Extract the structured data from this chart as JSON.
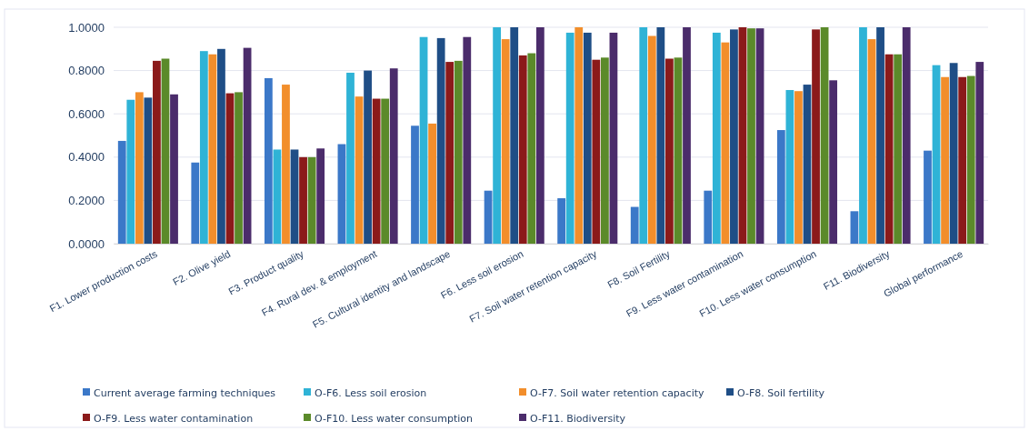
{
  "chart_data": {
    "type": "bar",
    "categories": [
      "F1. Lower production costs",
      "F2. Olive yield",
      "F3. Product quality",
      "F4. Rural dev. & employment",
      "F5. Cultural identity and landscape",
      "F6. Less soil erosion",
      "F7. Soil water retention capacity",
      "F8. Soil Fertility",
      "F9. Less water contamination",
      "F10. Less water consumption",
      "F11. Biodiversity",
      "Global performance"
    ],
    "series": [
      {
        "name": "Current average farming techniques",
        "color": "#3b78c8",
        "values": [
          0.475,
          0.375,
          0.765,
          0.46,
          0.545,
          0.245,
          0.21,
          0.17,
          0.245,
          0.525,
          0.15,
          0.43
        ]
      },
      {
        "name": "O-F6. Less soil erosion",
        "color": "#2fb3d6",
        "values": [
          0.665,
          0.89,
          0.435,
          0.79,
          0.955,
          1.0,
          0.975,
          1.0,
          0.975,
          0.71,
          1.0,
          0.825
        ]
      },
      {
        "name": "O-F7. Soil water retention capacity",
        "color": "#f28e2b",
        "values": [
          0.7,
          0.875,
          0.735,
          0.68,
          0.555,
          0.945,
          1.0,
          0.96,
          0.93,
          0.705,
          0.945,
          0.77
        ]
      },
      {
        "name": "O-F8. Soil fertility",
        "color": "#1f4e86",
        "values": [
          0.675,
          0.9,
          0.435,
          0.8,
          0.95,
          1.0,
          0.975,
          1.0,
          0.99,
          0.735,
          1.0,
          0.835
        ]
      },
      {
        "name": "O-F9. Less water contamination",
        "color": "#8b1a1a",
        "values": [
          0.845,
          0.695,
          0.4,
          0.67,
          0.84,
          0.87,
          0.85,
          0.855,
          1.0,
          0.99,
          0.875,
          0.77
        ]
      },
      {
        "name": "O-F10. Less water consumption",
        "color": "#5b8a2a",
        "values": [
          0.855,
          0.7,
          0.4,
          0.67,
          0.845,
          0.88,
          0.86,
          0.86,
          0.995,
          1.0,
          0.875,
          0.775
        ]
      },
      {
        "name": "O-F11. Biodiversity",
        "color": "#4b2c6b",
        "values": [
          0.69,
          0.905,
          0.44,
          0.81,
          0.955,
          1.0,
          0.975,
          1.0,
          0.995,
          0.755,
          1.0,
          0.84
        ]
      }
    ],
    "ylim": [
      0,
      1
    ],
    "yticks": [
      {
        "value": 0,
        "label": "0.0000"
      },
      {
        "value": 0.2,
        "label": "0.2000"
      },
      {
        "value": 0.4,
        "label": "0.4000"
      },
      {
        "value": 0.6,
        "label": "0.6000"
      },
      {
        "value": 0.8,
        "label": "0.8000"
      },
      {
        "value": 1,
        "label": "1.0000"
      }
    ],
    "grid": "y",
    "legend": "bottom"
  }
}
